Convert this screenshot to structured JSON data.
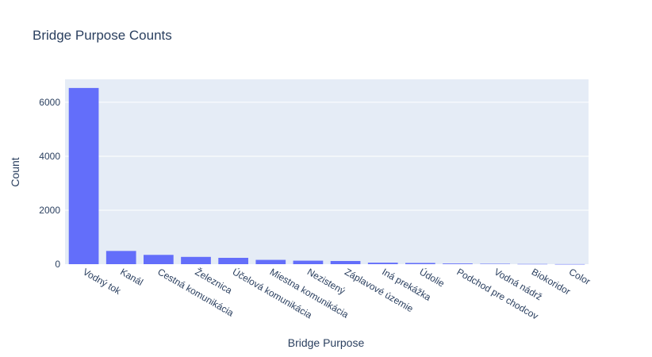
{
  "chart_data": {
    "type": "bar",
    "title": "Bridge Purpose Counts",
    "xlabel": "Bridge Purpose",
    "ylabel": "Count",
    "categories": [
      "Vodný tok",
      "Kanál",
      "Cestná komunikácia",
      "Železnica",
      "Účelová komunikácia",
      "Miestna komunikácia",
      "Nezistený",
      "Záplavové územie",
      "Iná prekážka",
      "Údolie",
      "Podchod pre chodcov",
      "Vodná nádrž",
      "Biokoridor",
      "Color"
    ],
    "values": [
      6530,
      490,
      345,
      270,
      235,
      160,
      130,
      118,
      55,
      45,
      25,
      15,
      8,
      3
    ],
    "ylim": [
      0,
      6850
    ],
    "yticks": [
      0,
      2000,
      4000,
      6000
    ],
    "ytick_labels": [
      "0",
      "2000",
      "4000",
      "6000"
    ],
    "grid": true,
    "bar_color": "#636efa",
    "plot_bg": "#e5ecf6",
    "text_color": "#2a3f5f"
  }
}
